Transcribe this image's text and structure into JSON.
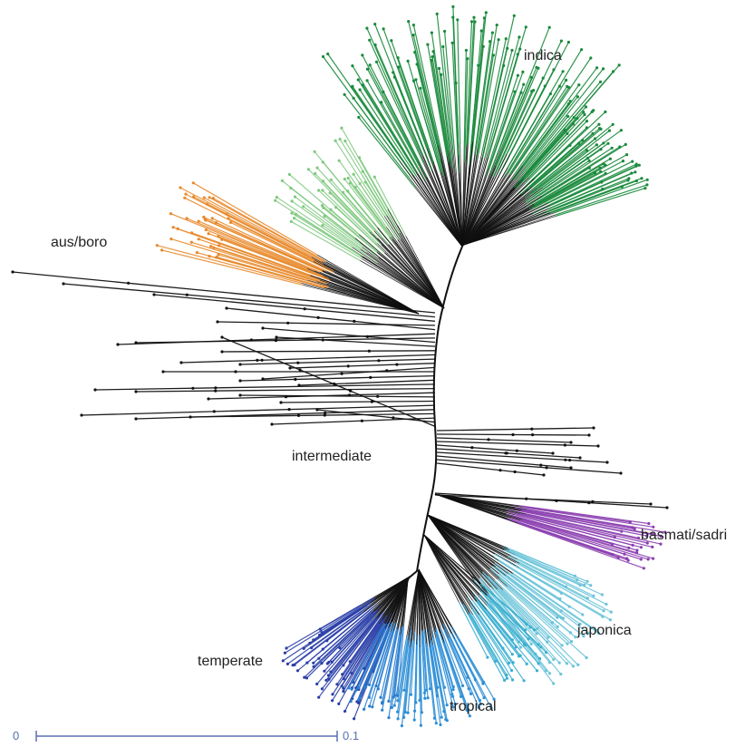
{
  "labels": {
    "indica": "indica",
    "aus_boro": "aus/boro",
    "intermediate": "intermediate",
    "basmati_sadri": "basmati/sadri",
    "japonica": "japonica",
    "temperate": "temperate",
    "tropical": "tropical"
  },
  "scale_bar": {
    "start": "0",
    "end": "0.1"
  },
  "colors": {
    "indica": "#1a8a3c",
    "indica_light": "#7fc97f",
    "aus_boro": "#e8892b",
    "intermediate": "#111111",
    "basmati_sadri": "#8b3fb0",
    "japonica": "#6cc4d9",
    "temperate": "#2a3fa8",
    "tropical": "#2f8fd6",
    "scale_bar": "#5b6fb3"
  }
}
